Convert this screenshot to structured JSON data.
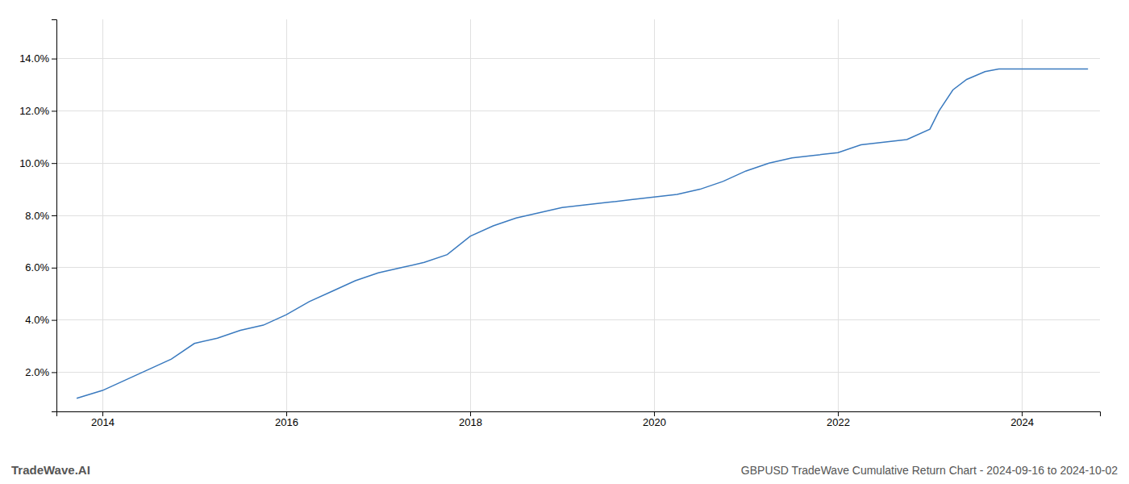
{
  "chart_data": {
    "type": "line",
    "title": "GBPUSD TradeWave Cumulative Return Chart - 2024-09-16 to 2024-10-02",
    "annotations": [
      "TradeWave.AI"
    ],
    "x": [
      2013.72,
      2014.0,
      2014.25,
      2014.5,
      2014.75,
      2015.0,
      2015.25,
      2015.5,
      2015.75,
      2016.0,
      2016.25,
      2016.5,
      2016.75,
      2017.0,
      2017.25,
      2017.5,
      2017.75,
      2018.0,
      2018.25,
      2018.5,
      2018.75,
      2019.0,
      2019.25,
      2019.5,
      2019.75,
      2020.0,
      2020.25,
      2020.5,
      2020.75,
      2021.0,
      2021.25,
      2021.5,
      2021.75,
      2022.0,
      2022.25,
      2022.5,
      2022.75,
      2023.0,
      2023.1,
      2023.25,
      2023.4,
      2023.6,
      2023.75,
      2024.0,
      2024.25,
      2024.5,
      2024.72
    ],
    "values": [
      0.01,
      0.013,
      0.017,
      0.021,
      0.025,
      0.031,
      0.033,
      0.036,
      0.038,
      0.042,
      0.047,
      0.051,
      0.055,
      0.058,
      0.06,
      0.062,
      0.065,
      0.072,
      0.076,
      0.079,
      0.081,
      0.083,
      0.084,
      0.085,
      0.086,
      0.087,
      0.088,
      0.09,
      0.093,
      0.097,
      0.1,
      0.102,
      0.103,
      0.104,
      0.107,
      0.108,
      0.109,
      0.113,
      0.12,
      0.128,
      0.132,
      0.135,
      0.136,
      0.136,
      0.136,
      0.136,
      0.136
    ],
    "color": "#3a7abf",
    "xlim": [
      2013.5,
      2024.85
    ],
    "ylim": [
      0.005,
      0.155
    ],
    "xticks": [
      2014,
      2016,
      2018,
      2020,
      2022,
      2024
    ],
    "yticks": [
      {
        "value": 0.02,
        "label": "2.0%"
      },
      {
        "value": 0.04,
        "label": "4.0%"
      },
      {
        "value": 0.06,
        "label": "6.0%"
      },
      {
        "value": 0.08,
        "label": "8.0%"
      },
      {
        "value": 0.1,
        "label": "10.0%"
      },
      {
        "value": 0.12,
        "label": "12.0%"
      },
      {
        "value": 0.14,
        "label": "14.0%"
      }
    ],
    "grid": true
  }
}
